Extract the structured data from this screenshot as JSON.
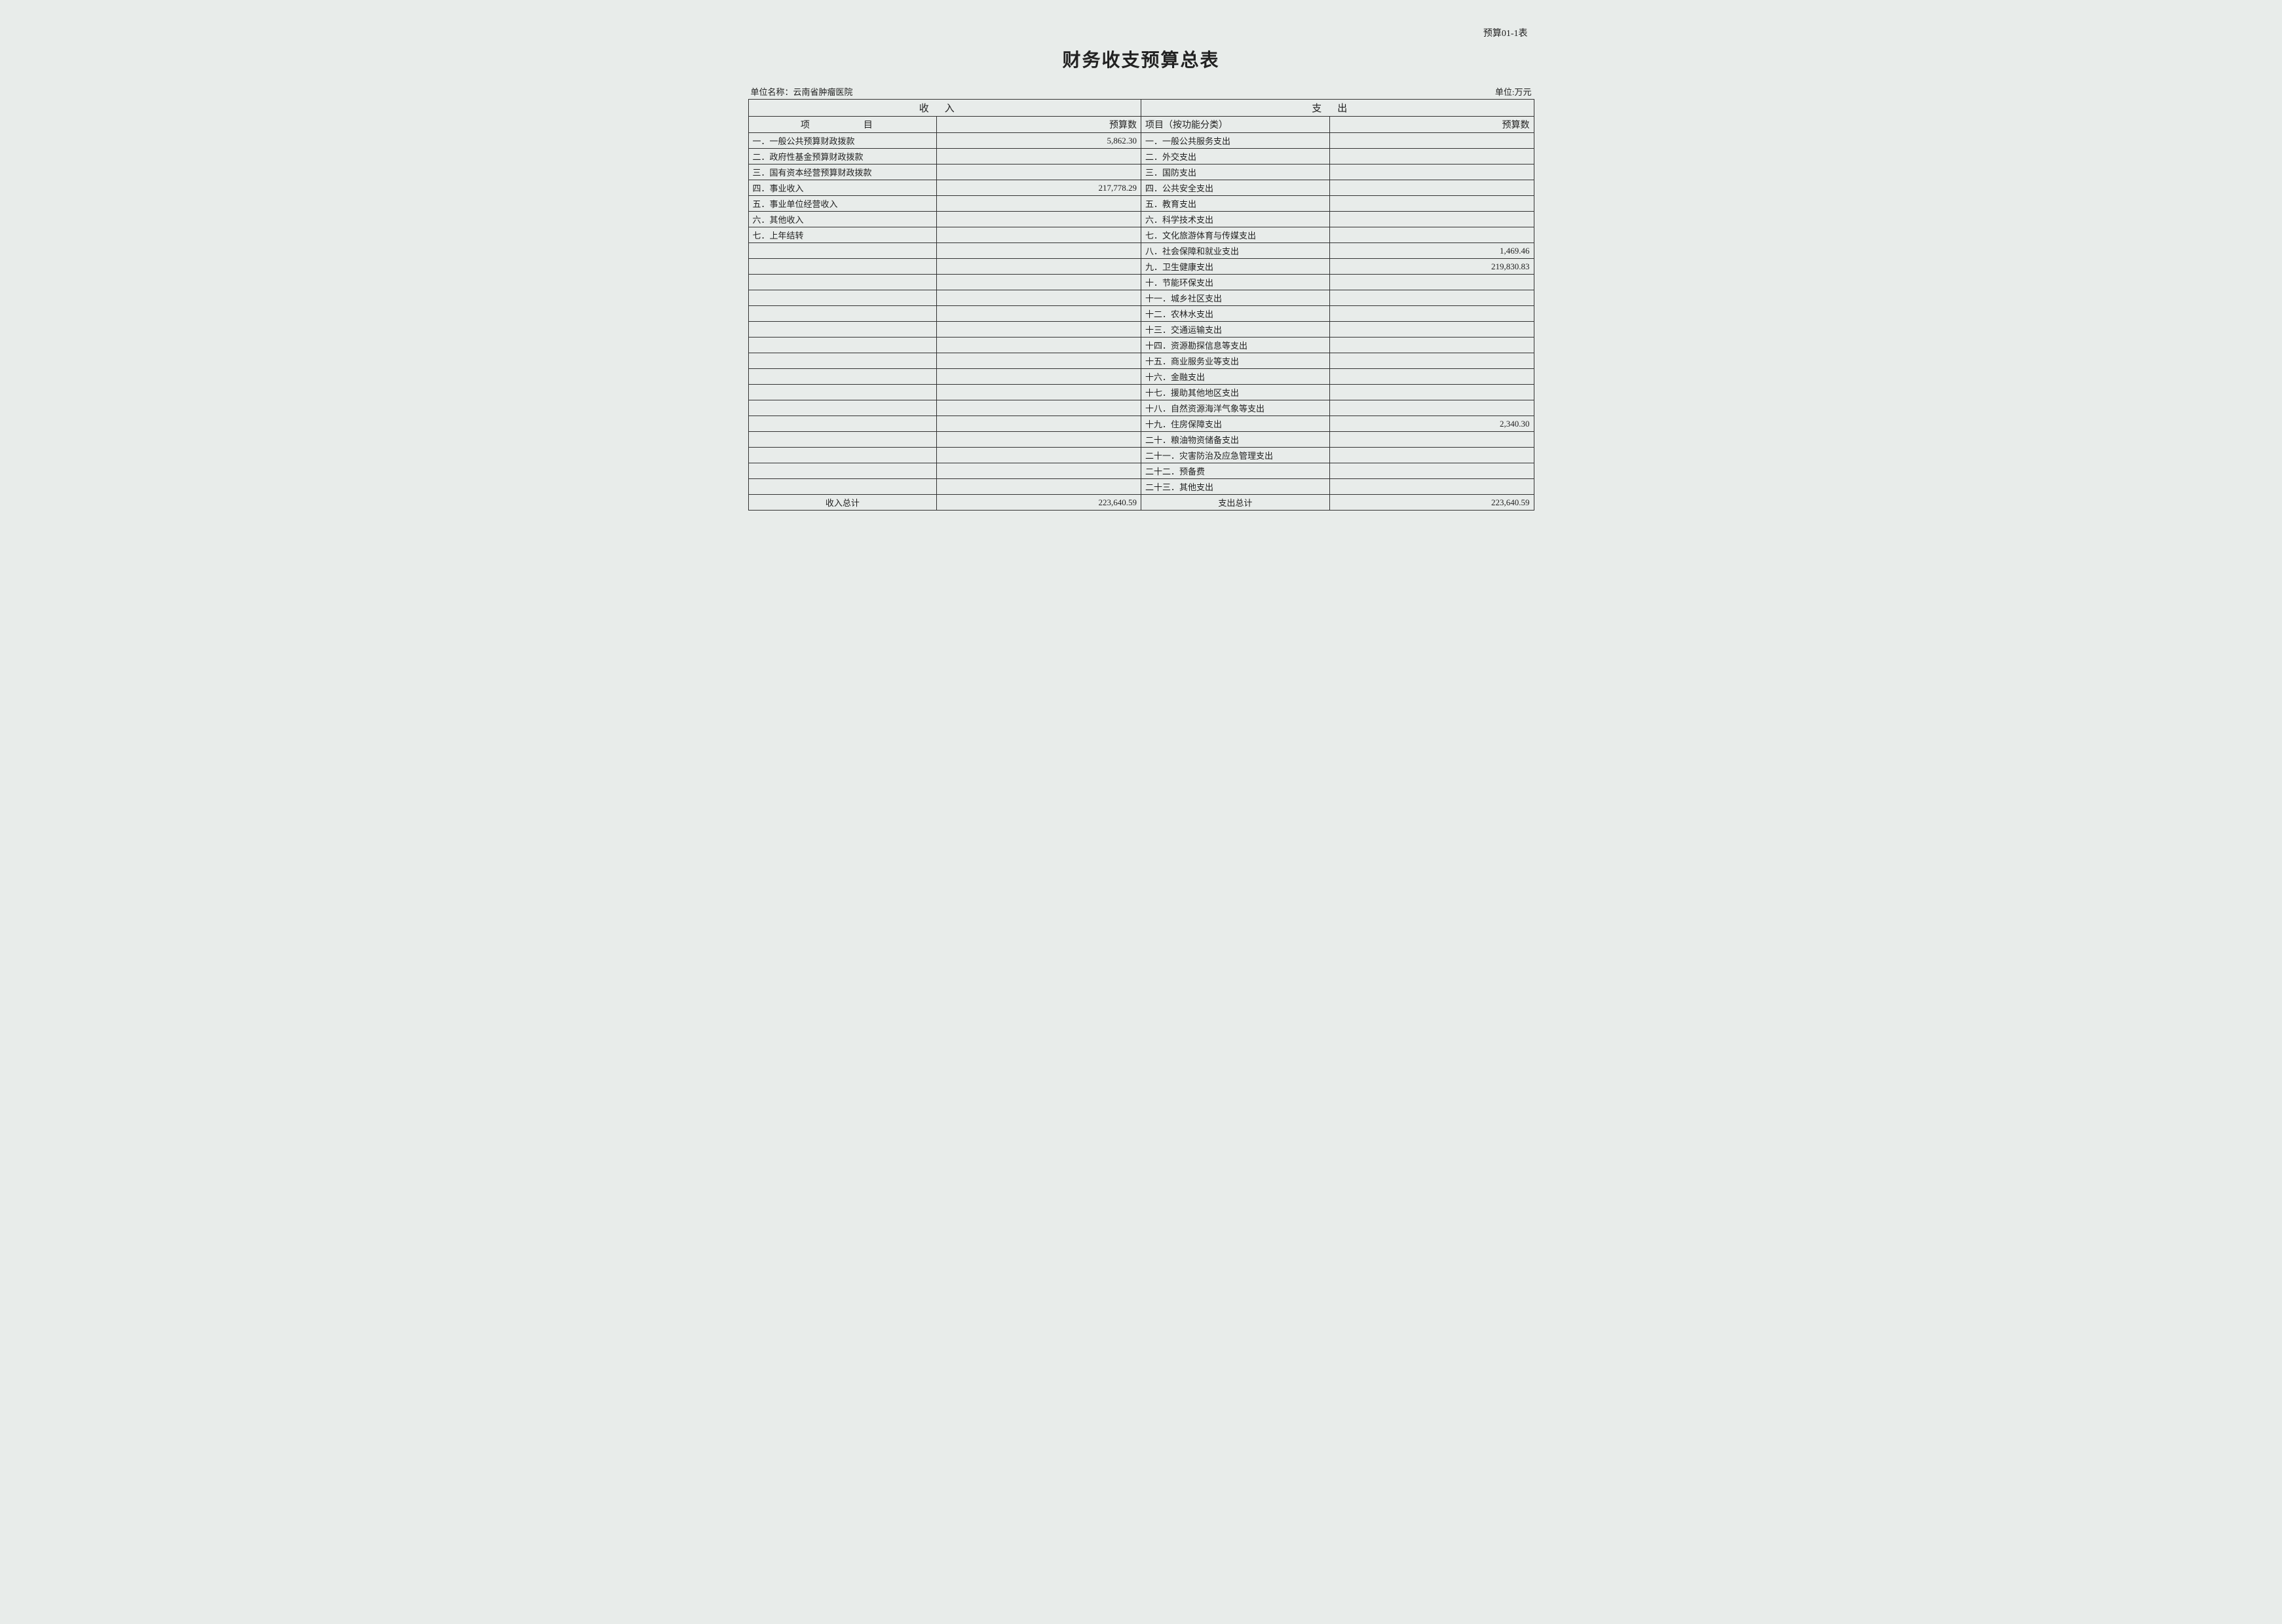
{
  "doc_id": "预算01-1表",
  "title": "财务收支预算总表",
  "org_label": "单位名称：",
  "org_name": "云南省肿瘤医院",
  "unit_label": "单位:万元",
  "headers": {
    "income": "收入",
    "expense": "支出",
    "item": "项　　目",
    "budget": "预算数",
    "item_func": "项目（按功能分类）"
  },
  "income_rows": [
    {
      "item": "一．一般公共预算财政拨款",
      "value": "5,862.30"
    },
    {
      "item": "二．政府性基金预算财政拨款",
      "value": ""
    },
    {
      "item": "三．国有资本经营预算财政拨款",
      "value": ""
    },
    {
      "item": "四．事业收入",
      "value": "217,778.29"
    },
    {
      "item": "五．事业单位经营收入",
      "value": ""
    },
    {
      "item": "六．其他收入",
      "value": ""
    },
    {
      "item": "七．上年结转",
      "value": ""
    },
    {
      "item": "",
      "value": ""
    },
    {
      "item": "",
      "value": ""
    },
    {
      "item": "",
      "value": ""
    },
    {
      "item": "",
      "value": ""
    },
    {
      "item": "",
      "value": ""
    },
    {
      "item": "",
      "value": ""
    },
    {
      "item": "",
      "value": ""
    },
    {
      "item": "",
      "value": ""
    },
    {
      "item": "",
      "value": ""
    },
    {
      "item": "",
      "value": ""
    },
    {
      "item": "",
      "value": ""
    },
    {
      "item": "",
      "value": ""
    },
    {
      "item": "",
      "value": ""
    },
    {
      "item": "",
      "value": ""
    },
    {
      "item": "",
      "value": ""
    },
    {
      "item": "",
      "value": ""
    }
  ],
  "expense_rows": [
    {
      "item": "一．一般公共服务支出",
      "value": ""
    },
    {
      "item": "二．外交支出",
      "value": ""
    },
    {
      "item": "三．国防支出",
      "value": ""
    },
    {
      "item": "四．公共安全支出",
      "value": ""
    },
    {
      "item": "五．教育支出",
      "value": ""
    },
    {
      "item": "六．科学技术支出",
      "value": ""
    },
    {
      "item": "七．文化旅游体育与传媒支出",
      "value": ""
    },
    {
      "item": "八．社会保障和就业支出",
      "value": "1,469.46"
    },
    {
      "item": "九．卫生健康支出",
      "value": "219,830.83"
    },
    {
      "item": "十．节能环保支出",
      "value": ""
    },
    {
      "item": "十一．城乡社区支出",
      "value": ""
    },
    {
      "item": "十二．农林水支出",
      "value": ""
    },
    {
      "item": "十三．交通运输支出",
      "value": ""
    },
    {
      "item": "十四．资源勘探信息等支出",
      "value": ""
    },
    {
      "item": "十五．商业服务业等支出",
      "value": ""
    },
    {
      "item": "十六．金融支出",
      "value": ""
    },
    {
      "item": "十七．援助其他地区支出",
      "value": ""
    },
    {
      "item": "十八．自然资源海洋气象等支出",
      "value": ""
    },
    {
      "item": "十九．住房保障支出",
      "value": "2,340.30"
    },
    {
      "item": "二十．粮油物资储备支出",
      "value": ""
    },
    {
      "item": "二十一．灾害防治及应急管理支出",
      "value": ""
    },
    {
      "item": "二十二．预备费",
      "value": ""
    },
    {
      "item": "二十三．其他支出",
      "value": ""
    }
  ],
  "totals": {
    "income_label": "收入总计",
    "income_value": "223,640.59",
    "expense_label": "支出总计",
    "expense_value": "223,640.59"
  },
  "styling": {
    "bg_color": "#e8ecea",
    "border_color": "#333333",
    "text_color": "#222222",
    "title_fontsize": 28,
    "body_fontsize": 13,
    "font_family": "SimSun"
  }
}
